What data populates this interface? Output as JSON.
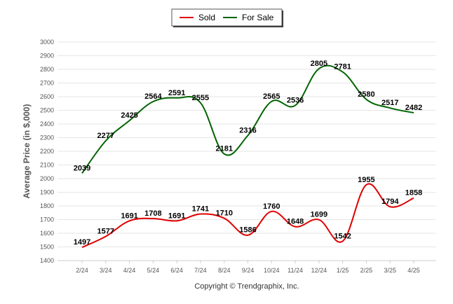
{
  "chart_data": {
    "type": "line",
    "title": "",
    "xlabel": "",
    "ylabel": "Average Price (in $,000)",
    "categories": [
      "2/24",
      "3/24",
      "4/24",
      "5/24",
      "6/24",
      "7/24",
      "8/24",
      "9/24",
      "10/24",
      "11/24",
      "12/24",
      "1/25",
      "2/25",
      "3/25",
      "4/25"
    ],
    "ylim": [
      1400,
      3000
    ],
    "yticks": [
      1400,
      1500,
      1600,
      1700,
      1800,
      1900,
      2000,
      2100,
      2200,
      2300,
      2400,
      2500,
      2600,
      2700,
      2800,
      2900,
      3000
    ],
    "grid": true,
    "legend_placement": "top-center",
    "series": [
      {
        "name": "Sold",
        "color": "#e00000",
        "values": [
          1497,
          1577,
          1691,
          1708,
          1691,
          1741,
          1710,
          1586,
          1760,
          1648,
          1699,
          1542,
          1955,
          1794,
          1858
        ]
      },
      {
        "name": "For Sale",
        "color": "#006400",
        "values": [
          2039,
          2277,
          2425,
          2564,
          2591,
          2555,
          2181,
          2316,
          2565,
          2536,
          2805,
          2781,
          2580,
          2517,
          2482
        ]
      }
    ]
  },
  "footer": {
    "copyright": "Copyright © Trendgraphix, Inc."
  }
}
